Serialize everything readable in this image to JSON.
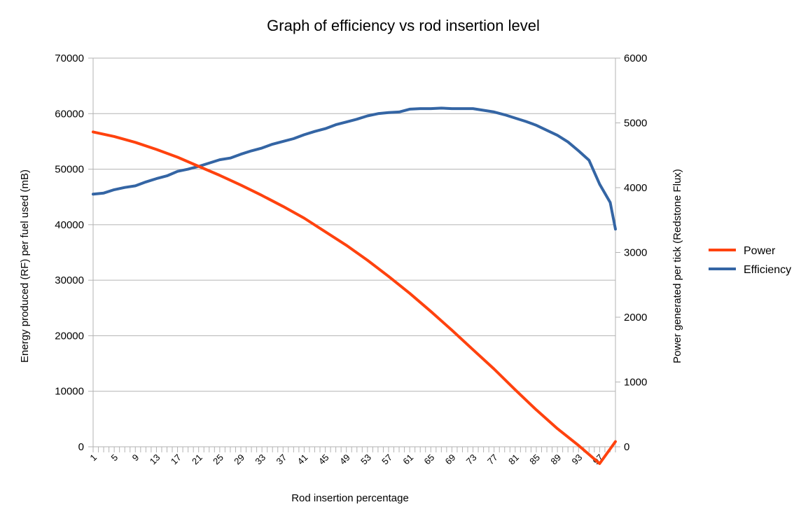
{
  "chart_data": {
    "type": "line",
    "title": "Graph of efficiency vs rod insertion level",
    "xlabel": "Rod insertion percentage",
    "ylabel_left": "Energy produced (RF) per fuel used (mB)",
    "ylabel_right": "Power generated per tick (Redstone Flux)",
    "ylim_left": [
      0,
      70000
    ],
    "ylim_right": [
      0,
      6000
    ],
    "yticks_left": [
      0,
      10000,
      20000,
      30000,
      40000,
      50000,
      60000,
      70000
    ],
    "yticks_right": [
      0,
      1000,
      2000,
      3000,
      4000,
      5000,
      6000
    ],
    "xlim": [
      1,
      100
    ],
    "xtick_labels": [
      "1",
      "5",
      "9",
      "13",
      "17",
      "21",
      "25",
      "29",
      "33",
      "37",
      "41",
      "45",
      "49",
      "53",
      "57",
      "61",
      "65",
      "69",
      "73",
      "77",
      "81",
      "85",
      "89",
      "93",
      "97"
    ],
    "grid": "horizontal",
    "legend_position": "right",
    "series": [
      {
        "name": "Power",
        "axis": "right",
        "color": "#ff420e",
        "x": [
          1,
          5,
          9,
          13,
          17,
          21,
          25,
          29,
          33,
          37,
          41,
          45,
          49,
          53,
          57,
          61,
          65,
          69,
          73,
          77,
          81,
          85,
          89,
          93,
          97,
          100
        ],
        "values": [
          4860,
          4790,
          4700,
          4590,
          4470,
          4330,
          4190,
          4040,
          3880,
          3710,
          3530,
          3320,
          3110,
          2880,
          2630,
          2370,
          2090,
          1800,
          1500,
          1200,
          880,
          570,
          280,
          20,
          -260,
          80
        ]
      },
      {
        "name": "Efficiency",
        "axis": "left",
        "color": "#3465a4",
        "x": [
          1,
          3,
          5,
          7,
          9,
          11,
          13,
          15,
          17,
          19,
          21,
          23,
          25,
          27,
          29,
          31,
          33,
          35,
          37,
          39,
          41,
          43,
          45,
          47,
          49,
          51,
          53,
          55,
          57,
          59,
          61,
          63,
          65,
          67,
          69,
          71,
          73,
          75,
          77,
          79,
          81,
          83,
          85,
          87,
          89,
          91,
          93,
          95,
          97,
          99,
          100
        ],
        "values": [
          45500,
          45700,
          46300,
          46700,
          47000,
          47700,
          48300,
          48800,
          49600,
          50000,
          50500,
          51100,
          51700,
          52000,
          52700,
          53300,
          53800,
          54500,
          55000,
          55500,
          56200,
          56800,
          57300,
          58000,
          58500,
          59000,
          59600,
          60000,
          60200,
          60300,
          60800,
          60900,
          60900,
          61000,
          60900,
          60900,
          60900,
          60600,
          60300,
          59800,
          59200,
          58600,
          57900,
          57000,
          56100,
          54900,
          53300,
          51600,
          47300,
          44000,
          39200
        ]
      }
    ]
  }
}
